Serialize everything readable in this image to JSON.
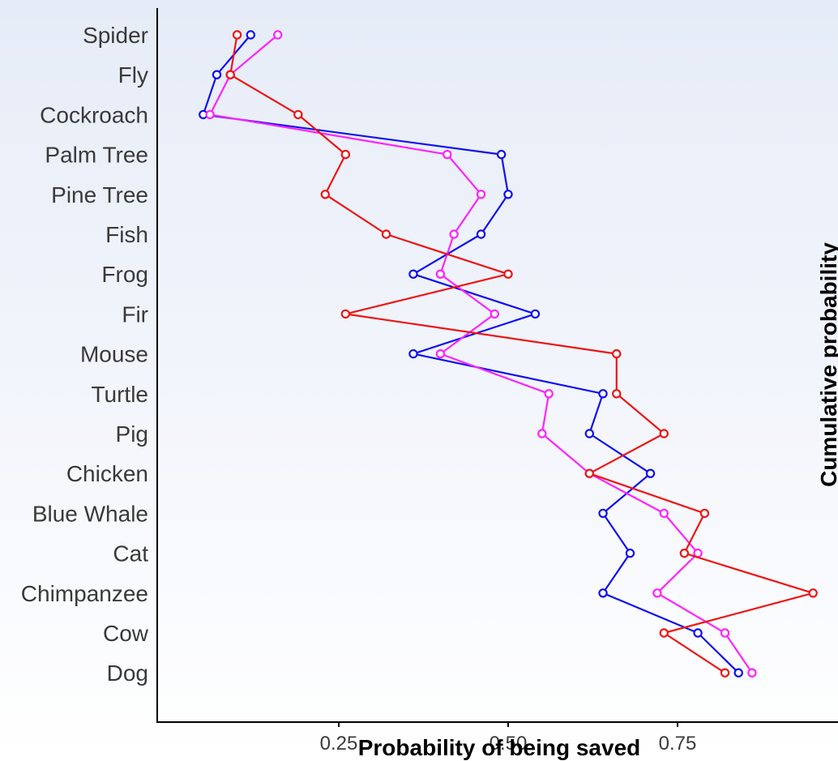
{
  "chart_data": {
    "type": "line",
    "orientation": "horizontal",
    "categories": [
      "Spider",
      "Fly",
      "Cockroach",
      "Palm Tree",
      "Pine Tree",
      "Fish",
      "Frog",
      "Fir",
      "Mouse",
      "Turtle",
      "Pig",
      "Chicken",
      "Blue Whale",
      "Cat",
      "Chimpanzee",
      "Cow",
      "Dog"
    ],
    "xlabel": "Probability of being saved",
    "right_label": "Cumulative probability",
    "xticks": [
      0.25,
      0.5,
      0.75
    ],
    "xtick_labels": [
      "0.25",
      "0.50",
      "0.75"
    ],
    "xlim": [
      0.0,
      0.96
    ],
    "grid": false,
    "series": [
      {
        "color": "#1010ee",
        "values": [
          0.12,
          0.07,
          0.05,
          0.49,
          0.5,
          0.46,
          0.36,
          0.54,
          0.36,
          0.64,
          0.62,
          0.71,
          0.64,
          0.68,
          0.64,
          0.78,
          0.84
        ]
      },
      {
        "color": "#ff22ff",
        "values": [
          0.16,
          0.09,
          0.06,
          0.41,
          0.46,
          0.42,
          0.4,
          0.48,
          0.4,
          0.56,
          0.55,
          0.62,
          0.73,
          0.78,
          0.72,
          0.82,
          0.86
        ]
      },
      {
        "color": "#ee1515",
        "values": [
          0.1,
          0.09,
          0.19,
          0.26,
          0.23,
          0.32,
          0.5,
          0.26,
          0.66,
          0.66,
          0.73,
          0.62,
          0.79,
          0.76,
          0.95,
          0.73,
          0.82
        ]
      }
    ]
  }
}
